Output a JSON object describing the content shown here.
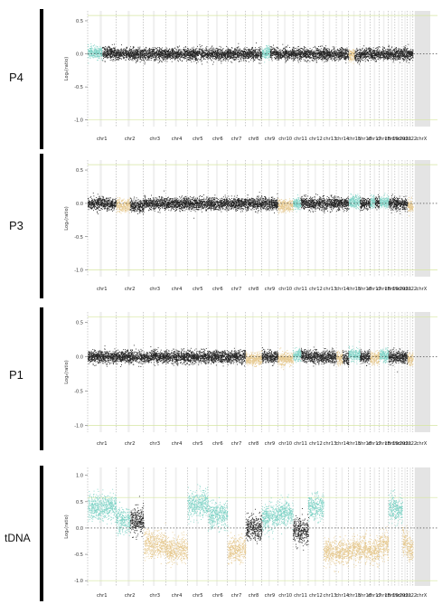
{
  "panels_labels": [
    "P4",
    "P3",
    "P1",
    "tDNA"
  ],
  "colors": {
    "neutral": "#222222",
    "gain": "#7fd3c6",
    "loss": "#e6c98f",
    "shade": "#e4e4e4",
    "gridline": "#bbbbbb",
    "refline": "#d6e6a0"
  },
  "chart_data": [
    {
      "type": "scatter",
      "sample": "P4",
      "ylabel": "Log₂(ratio)",
      "ylim": [
        -1.1,
        0.65
      ],
      "yticks": [
        0.5,
        0,
        -0.5,
        -1.0
      ],
      "ytick_labels": [
        "0.5",
        "0.0",
        "-0.5",
        "-1.0"
      ],
      "chromosomes": [
        "chr1",
        "chr2",
        "chr3",
        "chr4",
        "chr5",
        "chr6",
        "chr7",
        "chr8",
        "chr9",
        "chr10",
        "chr11",
        "chr12",
        "chr13",
        "chr14",
        "chr15",
        "chr16",
        "chr17",
        "chr18",
        "chr19",
        "chr20",
        "chr21",
        "chr22",
        "chrX"
      ],
      "segments": [
        0.02,
        0.0,
        0.0,
        0.0,
        0.0,
        0.0,
        0.0,
        0.0,
        0.02,
        0.0,
        0.0,
        0.0,
        0.0,
        0.0,
        -0.02,
        0.0,
        0.0,
        0.0,
        0.0,
        0.0,
        0.0,
        0.0,
        null
      ],
      "status": [
        "gain-part",
        "neutral",
        "neutral",
        "neutral",
        "neutral",
        "neutral",
        "neutral",
        "neutral",
        "gain-part",
        "neutral",
        "neutral",
        "neutral",
        "neutral",
        "neutral",
        "loss-part",
        "neutral",
        "neutral",
        "neutral",
        "neutral",
        "neutral",
        "neutral",
        "neutral",
        "none"
      ]
    },
    {
      "type": "scatter",
      "sample": "P3",
      "ylabel": "Log₂(ratio)",
      "ylim": [
        -1.1,
        0.65
      ],
      "yticks": [
        0.5,
        0,
        -0.5,
        -1.0
      ],
      "ytick_labels": [
        "0.5",
        "0.0",
        "-0.5",
        "-1.0"
      ],
      "chromosomes": [
        "chr1",
        "chr2",
        "chr3",
        "chr4",
        "chr5",
        "chr6",
        "chr7",
        "chr8",
        "chr9",
        "chr10",
        "chr11",
        "chr12",
        "chr13",
        "chr14",
        "chr15",
        "chr16",
        "chr17",
        "chr18",
        "chr19",
        "chr20",
        "chr21",
        "chr22",
        "chrX"
      ],
      "segments": [
        0.0,
        -0.03,
        0.0,
        0.0,
        0.0,
        0.0,
        0.0,
        0.0,
        0.0,
        -0.03,
        0.01,
        0.0,
        0.0,
        0.0,
        0.03,
        0.0,
        0.02,
        0.02,
        0.0,
        0.0,
        0.0,
        -0.03,
        null
      ],
      "status": [
        "neutral",
        "loss-part",
        "neutral",
        "neutral",
        "neutral",
        "neutral",
        "neutral",
        "neutral",
        "neutral",
        "loss",
        "gain-part",
        "neutral",
        "neutral",
        "neutral",
        "gain",
        "neutral",
        "gain-part",
        "gain",
        "neutral",
        "neutral",
        "neutral",
        "loss",
        "none"
      ]
    },
    {
      "type": "scatter",
      "sample": "P1",
      "ylabel": "Log₂(ratio)",
      "ylim": [
        -1.1,
        0.65
      ],
      "yticks": [
        0.5,
        0,
        -0.5,
        -1.0
      ],
      "ytick_labels": [
        "0.5",
        "0.0",
        "-0.5",
        "-1.0"
      ],
      "chromosomes": [
        "chr1",
        "chr2",
        "chr3",
        "chr4",
        "chr5",
        "chr6",
        "chr7",
        "chr8",
        "chr9",
        "chr10",
        "chr11",
        "chr12",
        "chr13",
        "chr14",
        "chr15",
        "chr16",
        "chr17",
        "chr18",
        "chr19",
        "chr20",
        "chr21",
        "chr22",
        "chrX"
      ],
      "segments": [
        0.0,
        0.0,
        0.0,
        0.0,
        0.0,
        0.0,
        0.0,
        -0.03,
        0.0,
        -0.03,
        0.02,
        0.0,
        0.0,
        -0.02,
        0.03,
        0.0,
        -0.02,
        0.03,
        0.0,
        0.0,
        0.0,
        -0.03,
        null
      ],
      "status": [
        "neutral",
        "neutral",
        "neutral",
        "neutral",
        "neutral",
        "neutral",
        "neutral",
        "loss",
        "neutral",
        "loss",
        "gain-part",
        "neutral",
        "neutral",
        "loss-part",
        "gain",
        "neutral",
        "loss",
        "gain",
        "neutral",
        "neutral",
        "neutral",
        "loss",
        "none"
      ]
    },
    {
      "type": "scatter",
      "sample": "tDNA",
      "ylabel": "Log₂(ratio)",
      "ylim": [
        -1.1,
        1.15
      ],
      "yticks": [
        1.0,
        0.5,
        0,
        -0.5,
        -1.0
      ],
      "ytick_labels": [
        "1.0",
        "0.5",
        "0.0",
        "-0.5",
        "-1.0"
      ],
      "chromosomes": [
        "chr1",
        "chr2",
        "chr3",
        "chr4",
        "chr5",
        "chr6",
        "chr7",
        "chr8",
        "chr9",
        "chr10",
        "chr11",
        "chr12",
        "chr13",
        "chr14",
        "chr15",
        "chr16",
        "chr17",
        "chr18",
        "chr19",
        "chr20",
        "chr21",
        "chr22",
        "chrX"
      ],
      "segments": [
        0.3,
        0.15,
        -0.2,
        -0.3,
        0.35,
        0.15,
        -0.3,
        0.0,
        0.1,
        0.2,
        -0.05,
        0.3,
        -0.35,
        -0.35,
        -0.3,
        -0.3,
        -0.35,
        -0.2,
        0.3,
        0.25,
        -0.15,
        -0.3,
        null
      ],
      "status": [
        "gain",
        "mixed",
        "loss",
        "loss",
        "gain",
        "gain",
        "loss",
        "neutral",
        "gain",
        "gain",
        "neutral",
        "gain",
        "loss",
        "loss",
        "loss",
        "loss",
        "loss",
        "loss",
        "gain",
        "gain",
        "loss",
        "loss",
        "none"
      ]
    }
  ]
}
